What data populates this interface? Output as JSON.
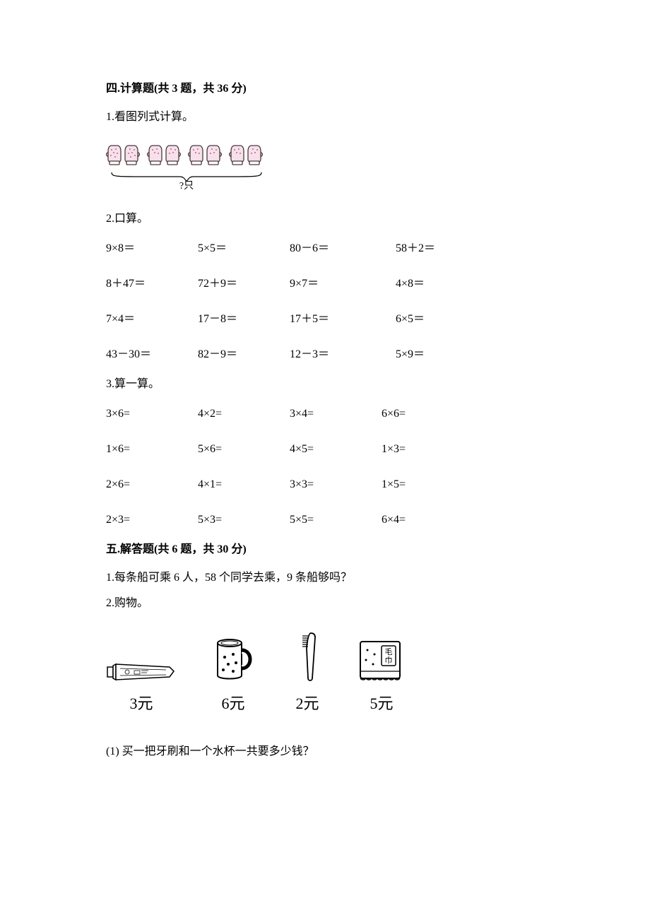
{
  "section4": {
    "title": "四.计算题(共 3 题，共 36 分)",
    "q1": {
      "label": "1.看图列式计算。",
      "brace_label": "?只"
    },
    "q2": {
      "label": "2.口算。",
      "rows": [
        [
          "9×8＝",
          "5×5＝",
          "80－6＝",
          "58＋2＝"
        ],
        [
          "8＋47＝",
          "72＋9＝",
          "9×7＝",
          "4×8＝"
        ],
        [
          "7×4＝",
          "17－8＝",
          "17＋5＝",
          "6×5＝"
        ],
        [
          "43－30＝",
          "82－9＝",
          "12－3＝",
          "5×9＝"
        ]
      ]
    },
    "q3": {
      "label": "3.算一算。",
      "rows": [
        [
          "3×6=",
          "4×2=",
          "3×4=",
          "6×6="
        ],
        [
          "1×6=",
          "5×6=",
          "4×5=",
          "1×3="
        ],
        [
          "2×6=",
          "4×1=",
          "3×3=",
          "1×5="
        ],
        [
          "2×3=",
          "5×3=",
          "5×5=",
          "6×4="
        ]
      ]
    }
  },
  "section5": {
    "title": "五.解答题(共 6 题，共 30 分)",
    "q1": "1.每条船可乘 6 人，58 个同学去乘，9 条船够吗？",
    "q2_label": "2.购物。",
    "items": [
      {
        "name": "toothpaste",
        "price": "3元"
      },
      {
        "name": "cup",
        "price": "6元"
      },
      {
        "name": "toothbrush",
        "price": "2元"
      },
      {
        "name": "towel",
        "price": "5元",
        "towel_text_top": "毛",
        "towel_text_bottom": "巾"
      }
    ],
    "sub1": "(1) 买一把牙刷和一个水杯一共要多少钱？"
  },
  "colors": {
    "text": "#000000",
    "bg": "#ffffff",
    "mitten_fill": "#f7e0ea",
    "mitten_stroke": "#4a3a3a",
    "line_stroke": "#000000"
  }
}
